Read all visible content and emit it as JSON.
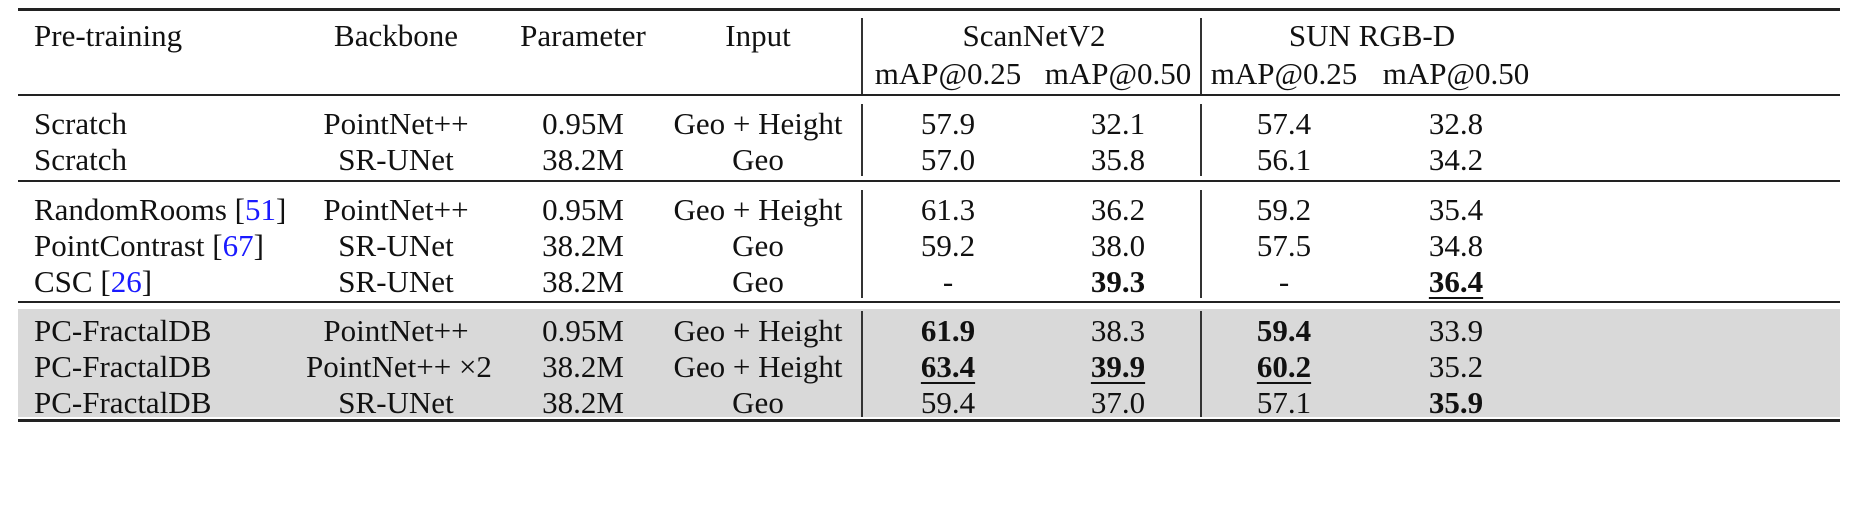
{
  "table": {
    "header": {
      "pretraining": "Pre-training",
      "backbone": "Backbone",
      "parameter": "Parameter",
      "input": "Input",
      "scannet": "ScanNetV2",
      "sunrgbd": "SUN RGB-D",
      "map25": "mAP@0.25",
      "map50": "mAP@0.50"
    },
    "groups": [
      {
        "shaded": false,
        "rows": [
          {
            "name": "Scratch",
            "cite": "",
            "backbone": "PointNet++",
            "param": "0.95M",
            "input": "Geo + Height",
            "s25": "57.9",
            "s50": "32.1",
            "r25": "57.4",
            "r50": "32.8",
            "bold": [],
            "underline": []
          },
          {
            "name": "Scratch",
            "cite": "",
            "backbone": "SR-UNet",
            "param": "38.2M",
            "input": "Geo",
            "s25": "57.0",
            "s50": "35.8",
            "r25": "56.1",
            "r50": "34.2",
            "bold": [],
            "underline": []
          }
        ]
      },
      {
        "shaded": false,
        "rows": [
          {
            "name": "RandomRooms",
            "cite": "51",
            "backbone": "PointNet++",
            "param": "0.95M",
            "input": "Geo + Height",
            "s25": "61.3",
            "s50": "36.2",
            "r25": "59.2",
            "r50": "35.4",
            "bold": [],
            "underline": []
          },
          {
            "name": "PointContrast",
            "cite": "67",
            "backbone": "SR-UNet",
            "param": "38.2M",
            "input": "Geo",
            "s25": "59.2",
            "s50": "38.0",
            "r25": "57.5",
            "r50": "34.8",
            "bold": [],
            "underline": []
          },
          {
            "name": "CSC",
            "cite": "26",
            "backbone": "SR-UNet",
            "param": "38.2M",
            "input": "Geo",
            "s25": "-",
            "s50": "39.3",
            "r25": "-",
            "r50": "36.4",
            "bold": [
              "s50",
              "r50"
            ],
            "underline": [
              "r50"
            ]
          }
        ]
      },
      {
        "shaded": true,
        "rows": [
          {
            "name": "PC-FractalDB",
            "cite": "",
            "backbone": "PointNet++",
            "param": "0.95M",
            "input": "Geo + Height",
            "s25": "61.9",
            "s50": "38.3",
            "r25": "59.4",
            "r50": "33.9",
            "bold": [
              "s25",
              "r25"
            ],
            "underline": []
          },
          {
            "name": "PC-FractalDB",
            "cite": "",
            "backbone": "PointNet++ ×2",
            "param": "38.2M",
            "input": "Geo + Height",
            "s25": "63.4",
            "s50": "39.9",
            "r25": "60.2",
            "r50": "35.2",
            "bold": [
              "s25",
              "s50",
              "r25"
            ],
            "underline": [
              "s25",
              "s50",
              "r25"
            ]
          },
          {
            "name": "PC-FractalDB",
            "cite": "",
            "backbone": "SR-UNet",
            "param": "38.2M",
            "input": "Geo",
            "s25": "59.4",
            "s50": "37.0",
            "r25": "57.1",
            "r50": "35.9",
            "bold": [
              "r50"
            ],
            "underline": []
          }
        ]
      }
    ],
    "colors": {
      "text": "#111111",
      "citation": "#1a1aff",
      "shade": "#d9d9d9",
      "rule": "#222222"
    }
  }
}
